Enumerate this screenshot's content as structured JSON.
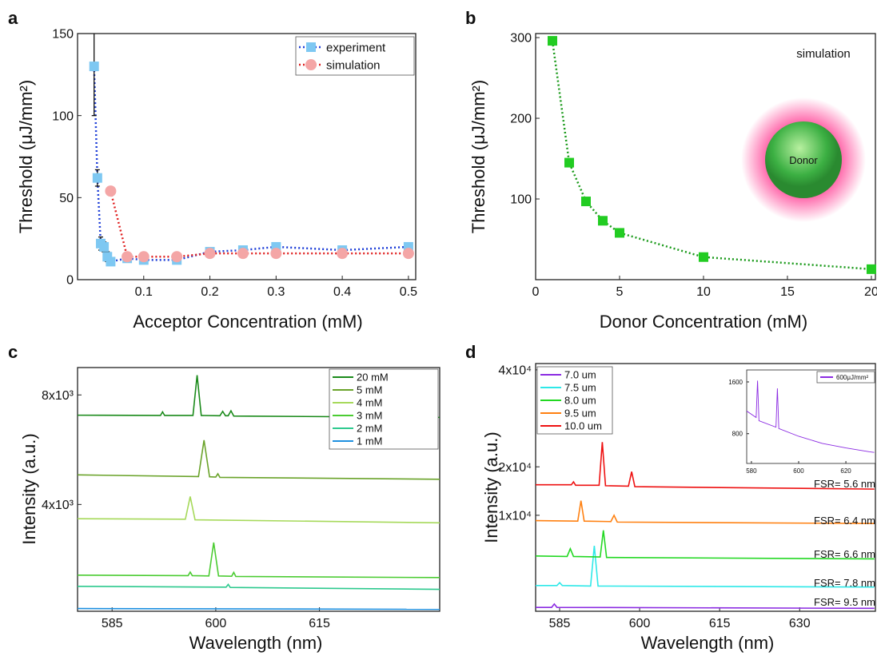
{
  "chart_data": [
    {
      "type": "scatter",
      "panel": "a",
      "xlabel": "Acceptor Concentration (mM)",
      "ylabel": "Threshold (μJ/mm²)",
      "xlim": [
        0,
        0.511
      ],
      "xticks": [
        0.1,
        0.2,
        0.3,
        0.4,
        0.5
      ],
      "ylim": [
        0,
        150
      ],
      "yticks": [
        0,
        50,
        100,
        150
      ],
      "legend": "upper right",
      "series": [
        {
          "name": "experiment",
          "color": "#7ec8f2",
          "line_color": "#2040d8",
          "marker": "square",
          "line_style": "dotted",
          "x": [
            0.025,
            0.03,
            0.035,
            0.04,
            0.045,
            0.05,
            0.075,
            0.1,
            0.15,
            0.2,
            0.25,
            0.3,
            0.4,
            0.5
          ],
          "values": [
            130,
            62,
            22,
            20,
            14,
            11,
            13,
            12,
            12,
            17,
            18,
            20,
            18,
            20
          ],
          "errors": [
            30,
            5,
            4,
            3,
            3,
            2,
            2,
            2,
            2,
            2,
            2,
            null,
            2,
            2
          ]
        },
        {
          "name": "simulation",
          "color": "#f4a6a6",
          "line_color": "#e02020",
          "marker": "circle",
          "line_style": "dotted",
          "x": [
            0.05,
            0.075,
            0.1,
            0.15,
            0.2,
            0.25,
            0.3,
            0.4,
            0.5
          ],
          "values": [
            54,
            14,
            14,
            14,
            16,
            16,
            16,
            16,
            16
          ]
        }
      ]
    },
    {
      "type": "scatter",
      "panel": "b",
      "xlabel": "Donor Concentration (mM)",
      "ylabel": "Threshold (μJ/mm²)",
      "xlim": [
        0,
        20.24
      ],
      "xticks": [
        0,
        5,
        10,
        15,
        20
      ],
      "ylim": [
        0,
        305
      ],
      "yticks": [
        100,
        200,
        300
      ],
      "annotations": [
        "simulation",
        "Donor"
      ],
      "series": [
        {
          "color": "#22cc22",
          "line_color": "#1a9a1a",
          "marker": "square",
          "line_style": "dotted",
          "x": [
            1,
            2,
            3,
            4,
            5,
            10,
            20
          ],
          "values": [
            296,
            145,
            97,
            73,
            58,
            28,
            13
          ]
        }
      ]
    },
    {
      "type": "line",
      "panel": "c",
      "xlabel": "Wavelength (nm)",
      "ylabel": "Intensity (a.u.)",
      "xlim": [
        580,
        632.4
      ],
      "xticks": [
        585,
        600,
        615
      ],
      "ylim": [
        100,
        9000
      ],
      "yticks": [
        {
          "value": 4000,
          "label": "4x10³"
        },
        {
          "value": 8000,
          "label": "8x10³"
        }
      ],
      "legend": "upper right",
      "series": [
        {
          "name": "20 mM",
          "color": "#1a8a1a",
          "line_style": "solid",
          "x": [
            580,
            592,
            592.3,
            592.6,
            596.7,
            597.3,
            597.9,
            600.6,
            601,
            601.4,
            601.8,
            602.2,
            602.6,
            632.4
          ],
          "values": [
            7260,
            7250,
            7380,
            7250,
            7250,
            8720,
            7250,
            7240,
            7400,
            7240,
            7240,
            7420,
            7230,
            7180
          ]
        },
        {
          "name": "5 mM",
          "color": "#6aa32a",
          "line_style": "solid",
          "x": [
            580,
            597.5,
            598.3,
            599.1,
            600,
            600.3,
            600.6,
            632.4
          ],
          "values": [
            5080,
            5020,
            6350,
            5010,
            5000,
            5120,
            4990,
            4920
          ]
        },
        {
          "name": "4 mM",
          "color": "#a6d95a",
          "line_style": "solid",
          "x": [
            580,
            595.6,
            596.3,
            597,
            632.4
          ],
          "values": [
            3480,
            3460,
            4290,
            3440,
            3330
          ]
        },
        {
          "name": "3 mM",
          "color": "#4ccc33",
          "line_style": "solid",
          "x": [
            580,
            596,
            596.3,
            596.6,
            599,
            599.7,
            600.4,
            602.3,
            602.6,
            602.9,
            632.4
          ],
          "values": [
            1420,
            1400,
            1530,
            1400,
            1390,
            2610,
            1390,
            1380,
            1520,
            1370,
            1330
          ]
        },
        {
          "name": "2 mM",
          "color": "#2dc98e",
          "line_style": "solid",
          "x": [
            580,
            601.5,
            601.8,
            602.1,
            632.4
          ],
          "values": [
            1010,
            980,
            1080,
            970,
            900
          ]
        },
        {
          "name": "1 mM",
          "color": "#1e90e0",
          "line_style": "solid",
          "x": [
            580,
            632.4
          ],
          "values": [
            200,
            170
          ]
        }
      ]
    },
    {
      "type": "line",
      "panel": "d",
      "xlabel": "Wavelength (nm)",
      "ylabel": "Intensity (a.u.)",
      "xlim": [
        580.5,
        644.2
      ],
      "xticks": [
        585,
        600,
        615,
        630
      ],
      "ylim": [
        -9800,
        41300
      ],
      "yticks": [
        {
          "value": 10000,
          "label": "1x10⁴"
        },
        {
          "value": 20000,
          "label": "2x10⁴"
        },
        {
          "value": 40000,
          "label": "4x10⁴"
        }
      ],
      "legend": "upper left",
      "annotations": [
        "FSR= 5.6 nm",
        "FSR= 6.4 nm",
        "FSR= 6.6 nm",
        "FSR= 7.8 nm",
        "FSR= 9.5 nm"
      ],
      "series": [
        {
          "name": "7.0 um",
          "color": "#8b2be2",
          "line_style": "solid",
          "x": [
            580.5,
            583.5,
            584,
            584.5,
            644
          ],
          "values": [
            -9000,
            -9000,
            -8300,
            -9000,
            -9200
          ]
        },
        {
          "name": "7.5 um",
          "color": "#2ee8e8",
          "line_style": "solid",
          "x": [
            580.5,
            584.5,
            585,
            585.5,
            590.8,
            591.5,
            592.2,
            644
          ],
          "values": [
            -4500,
            -4500,
            -3900,
            -4500,
            -4600,
            3700,
            -4600,
            -4800
          ]
        },
        {
          "name": "8.0 um",
          "color": "#22d822",
          "line_style": "solid",
          "x": [
            580.5,
            586.4,
            587,
            587.6,
            592.6,
            593.2,
            593.8,
            644
          ],
          "values": [
            1600,
            1500,
            3100,
            1500,
            1400,
            6900,
            1300,
            1000
          ]
        },
        {
          "name": "9.5 um",
          "color": "#ff8010",
          "line_style": "solid",
          "x": [
            580.5,
            588.4,
            589,
            589.6,
            594.6,
            595.2,
            595.8,
            644
          ],
          "values": [
            8900,
            8800,
            13000,
            8800,
            8700,
            10000,
            8600,
            8300
          ]
        },
        {
          "name": "10.0 um",
          "color": "#ee1111",
          "line_style": "solid",
          "x": [
            580.5,
            587.2,
            587.6,
            588,
            592.4,
            593,
            593.6,
            597.9,
            598.5,
            599.1,
            644
          ],
          "values": [
            16300,
            16300,
            16900,
            16200,
            16200,
            25100,
            16100,
            16000,
            19000,
            15900,
            15400
          ]
        }
      ]
    },
    {
      "type": "line",
      "xlim": [
        578,
        632.5
      ],
      "xticks": [
        580,
        600,
        620
      ],
      "ylim": [
        340,
        1785
      ],
      "yticks": [
        800,
        1600
      ],
      "legend": "upper right",
      "series": [
        {
          "name": "600μJ/mm²",
          "color": "#8b2be2",
          "line_style": "solid",
          "x": [
            578,
            582,
            582.6,
            583.2,
            590.4,
            591,
            591.6,
            600,
            610,
            620,
            630,
            632
          ],
          "values": [
            1150,
            1050,
            1620,
            1000,
            900,
            1500,
            880,
            760,
            650,
            580,
            520,
            510
          ]
        }
      ]
    }
  ]
}
